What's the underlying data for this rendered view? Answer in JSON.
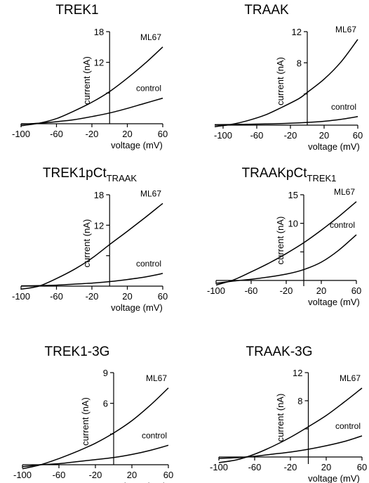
{
  "figure": {
    "xlabel": "voltage (mV)",
    "ylabel": "current (nA)"
  },
  "chart_data": [
    {
      "type": "line",
      "title": "TREK1",
      "title_sub": "",
      "xlabel": "voltage (mV)",
      "ylabel": "current (nA)",
      "xlim": [
        -100,
        60
      ],
      "ylim": [
        0,
        18
      ],
      "xticks": [
        -100,
        -60,
        -20,
        20,
        60
      ],
      "yticks": [
        6,
        12,
        18
      ],
      "ytick_labels": [
        "",
        "12",
        "18"
      ],
      "series": [
        {
          "name": "ML67",
          "x": [
            -100,
            -80,
            -60,
            -40,
            -20,
            0,
            20,
            40,
            60
          ],
          "values": [
            -0.4,
            0.1,
            1.0,
            2.5,
            4.2,
            6.3,
            8.9,
            11.8,
            15.0
          ]
        },
        {
          "name": "control",
          "x": [
            -100,
            -80,
            -60,
            -40,
            -20,
            0,
            20,
            40,
            60
          ],
          "values": [
            -0.1,
            0.1,
            0.4,
            0.8,
            1.4,
            2.1,
            3.0,
            4.0,
            5.0
          ]
        }
      ]
    },
    {
      "type": "line",
      "title": "TRAAK",
      "title_sub": "",
      "xlabel": "voltage (mV)",
      "ylabel": "current (nA)",
      "xlim": [
        -110,
        60
      ],
      "ylim": [
        0,
        12
      ],
      "xticks": [
        -100,
        -60,
        -20,
        20,
        60
      ],
      "yticks": [
        4,
        8,
        12
      ],
      "ytick_labels": [
        "",
        "8",
        "12"
      ],
      "series": [
        {
          "name": "ML67",
          "x": [
            -110,
            -90,
            -70,
            -50,
            -30,
            -10,
            0,
            20,
            40,
            60
          ],
          "values": [
            -0.2,
            0.1,
            0.6,
            1.3,
            2.3,
            3.4,
            4.2,
            5.9,
            8.1,
            11.0
          ]
        },
        {
          "name": "control",
          "x": [
            -110,
            -80,
            -50,
            -20,
            0,
            20,
            40,
            60
          ],
          "values": [
            0.05,
            0.1,
            0.15,
            0.25,
            0.35,
            0.5,
            0.75,
            1.1
          ]
        }
      ]
    },
    {
      "type": "line",
      "title": "TREK1pCt",
      "title_sub": "TRAAK",
      "xlabel": "voltage (mV)",
      "ylabel": "current (nA)",
      "xlim": [
        -100,
        60
      ],
      "ylim": [
        0,
        18
      ],
      "xticks": [
        -100,
        -60,
        -20,
        20,
        60
      ],
      "yticks": [
        6,
        12,
        18
      ],
      "ytick_labels": [
        "",
        "12",
        "18"
      ],
      "series": [
        {
          "name": "ML67",
          "x": [
            -100,
            -80,
            -60,
            -40,
            -20,
            0,
            20,
            40,
            60
          ],
          "values": [
            -0.6,
            0.0,
            1.5,
            3.3,
            5.5,
            8.2,
            10.8,
            13.5,
            16.3
          ]
        },
        {
          "name": "control",
          "x": [
            -100,
            -80,
            -60,
            -40,
            -20,
            0,
            20,
            40,
            60
          ],
          "values": [
            0.05,
            0.1,
            0.2,
            0.4,
            0.6,
            0.9,
            1.3,
            1.8,
            2.5
          ]
        }
      ]
    },
    {
      "type": "line",
      "title": "TRAAKpCt",
      "title_sub": "TREK1",
      "xlabel": "voltage (mV)",
      "ylabel": "current (nA)",
      "xlim": [
        -100,
        60
      ],
      "ylim": [
        -1,
        15
      ],
      "xticks": [
        -100,
        -60,
        -20,
        20,
        60
      ],
      "yticks": [
        5,
        10,
        15
      ],
      "ytick_labels": [
        "",
        "10",
        "15"
      ],
      "series": [
        {
          "name": "ML67",
          "x": [
            -100,
            -80,
            -60,
            -40,
            -20,
            0,
            20,
            40,
            60
          ],
          "values": [
            -0.8,
            0.1,
            1.5,
            3.0,
            4.7,
            6.6,
            8.8,
            11.2,
            13.8
          ]
        },
        {
          "name": "control",
          "x": [
            -100,
            -80,
            -60,
            -40,
            -20,
            0,
            20,
            40,
            60
          ],
          "values": [
            -0.5,
            -0.1,
            0.2,
            0.6,
            1.1,
            1.9,
            3.2,
            5.3,
            8.0
          ]
        }
      ]
    },
    {
      "type": "line",
      "title": "TREK1-3G",
      "title_sub": "",
      "xlabel": "voltage (mV)",
      "ylabel": "current (nA)",
      "xlim": [
        -100,
        60
      ],
      "ylim": [
        0,
        9
      ],
      "xticks": [
        -100,
        -60,
        -20,
        20,
        60
      ],
      "yticks": [
        3,
        6,
        9
      ],
      "ytick_labels": [
        "",
        "6",
        "9"
      ],
      "series": [
        {
          "name": "ML67",
          "x": [
            -100,
            -80,
            -60,
            -40,
            -20,
            0,
            20,
            40,
            60
          ],
          "values": [
            -0.4,
            0.0,
            0.6,
            1.3,
            2.1,
            3.1,
            4.3,
            5.8,
            7.5
          ]
        },
        {
          "name": "control",
          "x": [
            -100,
            -80,
            -60,
            -40,
            -20,
            0,
            20,
            40,
            60
          ],
          "values": [
            -0.2,
            0.0,
            0.1,
            0.3,
            0.5,
            0.7,
            1.0,
            1.4,
            1.9
          ]
        }
      ]
    },
    {
      "type": "line",
      "title": "TRAAK-3G",
      "title_sub": "",
      "xlabel": "voltage (mV)",
      "ylabel": "current (nA)",
      "xlim": [
        -100,
        60
      ],
      "ylim": [
        -1,
        12
      ],
      "xticks": [
        -100,
        -60,
        -20,
        20,
        60
      ],
      "yticks": [
        4,
        8,
        12
      ],
      "ytick_labels": [
        "",
        "8",
        "12"
      ],
      "series": [
        {
          "name": "ML67",
          "x": [
            -100,
            -80,
            -60,
            -40,
            -20,
            0,
            20,
            40,
            60
          ],
          "values": [
            -0.8,
            -0.4,
            0.4,
            1.5,
            2.8,
            4.3,
            5.9,
            7.8,
            9.8
          ]
        },
        {
          "name": "control",
          "x": [
            -100,
            -80,
            -60,
            -40,
            -20,
            0,
            20,
            40,
            60
          ],
          "values": [
            -0.2,
            -0.1,
            0.1,
            0.4,
            0.7,
            1.1,
            1.6,
            2.2,
            3.0
          ]
        }
      ]
    }
  ]
}
